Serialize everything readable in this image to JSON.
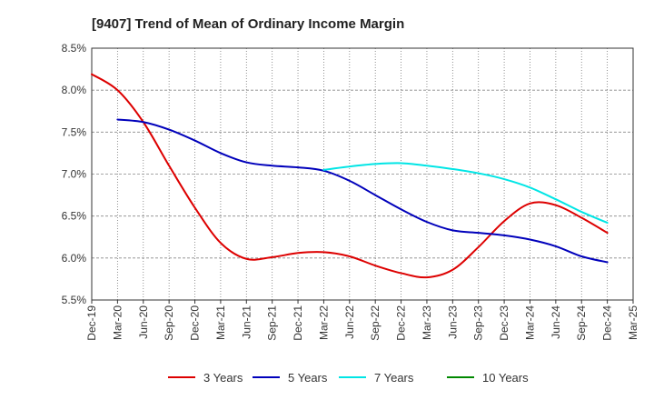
{
  "chart_data": {
    "type": "line",
    "title": "[9407]  Trend of Mean of Ordinary Income Margin",
    "xlabel": "",
    "ylabel": "",
    "x_ticks": [
      "Dec-19",
      "Mar-20",
      "Jun-20",
      "Sep-20",
      "Dec-20",
      "Mar-21",
      "Jun-21",
      "Sep-21",
      "Dec-21",
      "Mar-22",
      "Jun-22",
      "Sep-22",
      "Dec-22",
      "Mar-23",
      "Jun-23",
      "Sep-23",
      "Dec-23",
      "Mar-24",
      "Jun-24",
      "Sep-24",
      "Dec-24",
      "Mar-25"
    ],
    "y_ticks": [
      "8.5%",
      "8.0%",
      "7.5%",
      "7.0%",
      "6.5%",
      "6.0%",
      "5.5%"
    ],
    "ylim": [
      5.5,
      8.5
    ],
    "grid": "vertical dotted at each quarter, horizontal dashed at each tick",
    "legend_position": "bottom",
    "series": [
      {
        "name": "3 Years",
        "color": "#dd0000",
        "x": [
          "Dec-19",
          "Mar-20",
          "Jun-20",
          "Sep-20",
          "Dec-20",
          "Mar-21",
          "Jun-21",
          "Sep-21",
          "Dec-21",
          "Mar-22",
          "Jun-22",
          "Sep-22",
          "Dec-22",
          "Mar-23",
          "Jun-23",
          "Sep-23",
          "Dec-23",
          "Mar-24",
          "Jun-24",
          "Sep-24",
          "Dec-24"
        ],
        "values": [
          8.19,
          8.0,
          7.62,
          7.1,
          6.6,
          6.18,
          5.99,
          6.01,
          6.06,
          6.07,
          6.02,
          5.91,
          5.82,
          5.77,
          5.86,
          6.13,
          6.44,
          6.65,
          6.63,
          6.48,
          6.3
        ]
      },
      {
        "name": "5 Years",
        "color": "#0000bb",
        "x": [
          "Mar-20",
          "Jun-20",
          "Sep-20",
          "Dec-20",
          "Mar-21",
          "Jun-21",
          "Sep-21",
          "Dec-21",
          "Mar-22",
          "Jun-22",
          "Sep-22",
          "Dec-22",
          "Mar-23",
          "Jun-23",
          "Sep-23",
          "Dec-23",
          "Mar-24",
          "Jun-24",
          "Sep-24",
          "Dec-24"
        ],
        "values": [
          7.65,
          7.62,
          7.53,
          7.4,
          7.25,
          7.14,
          7.1,
          7.08,
          7.04,
          6.92,
          6.75,
          6.58,
          6.43,
          6.33,
          6.3,
          6.27,
          6.22,
          6.14,
          6.02,
          5.95
        ]
      },
      {
        "name": "7 Years",
        "color": "#00e5e5",
        "x": [
          "Mar-22",
          "Jun-22",
          "Sep-22",
          "Dec-22",
          "Mar-23",
          "Jun-23",
          "Sep-23",
          "Dec-23",
          "Mar-24",
          "Jun-24",
          "Sep-24",
          "Dec-24"
        ],
        "values": [
          7.05,
          7.09,
          7.12,
          7.13,
          7.1,
          7.06,
          7.01,
          6.94,
          6.84,
          6.7,
          6.55,
          6.42
        ]
      },
      {
        "name": "10 Years",
        "color": "#008800",
        "x": [],
        "values": []
      }
    ]
  }
}
